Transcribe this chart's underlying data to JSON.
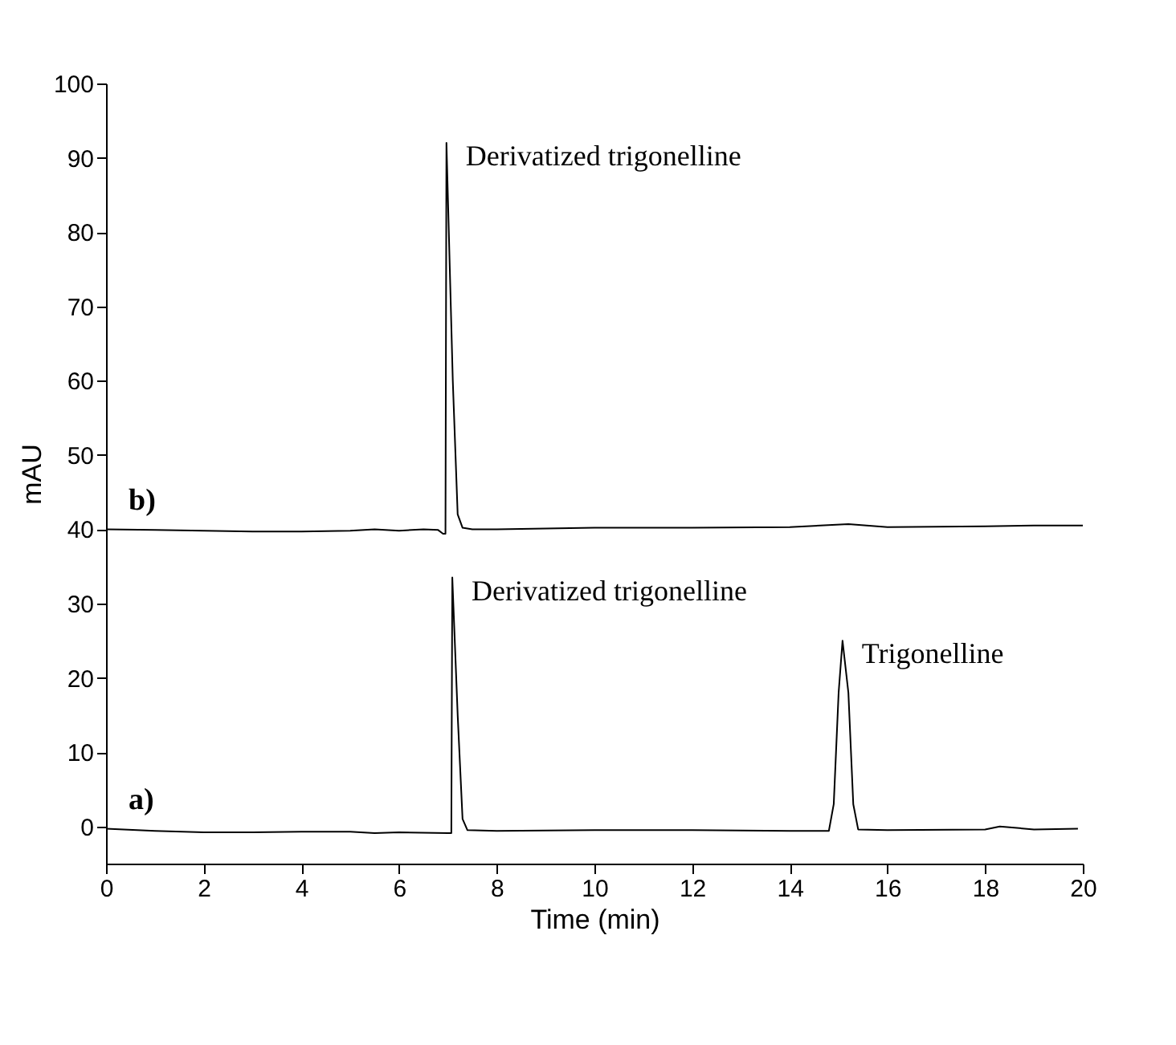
{
  "chart_data": {
    "type": "line",
    "xlabel": "Time (min)",
    "ylabel": "mAU",
    "xlim": [
      0,
      20
    ],
    "xticks": [
      0,
      2,
      4,
      6,
      8,
      10,
      12,
      14,
      16,
      18,
      20
    ],
    "ylim": [
      -5,
      100
    ],
    "yticks": [
      0,
      10,
      20,
      30,
      40,
      50,
      60,
      70,
      80,
      90,
      100
    ],
    "grid": false,
    "legend": false,
    "marker": "none",
    "line_style": "solid",
    "series": [
      {
        "color": "#000000",
        "x": [
          0,
          1,
          2,
          3,
          4,
          5,
          5.5,
          6,
          6.5,
          6.8,
          6.9,
          6.95,
          6.97,
          7.1,
          7.2,
          7.3,
          7.5,
          8,
          10,
          12,
          14,
          15.2,
          16,
          18,
          19,
          20
        ],
        "values": [
          40,
          39.9,
          39.8,
          39.7,
          39.7,
          39.8,
          40,
          39.8,
          40,
          39.9,
          39.4,
          39.4,
          92,
          60,
          42,
          40.2,
          40,
          40,
          40.2,
          40.2,
          40.3,
          40.7,
          40.3,
          40.4,
          40.5,
          40.5
        ]
      },
      {
        "color": "#000000",
        "x": [
          0,
          1,
          2,
          3,
          4,
          5,
          5.5,
          6,
          7,
          7.07,
          7.09,
          7.2,
          7.3,
          7.4,
          8,
          10,
          12,
          14,
          14.8,
          14.9,
          15.0,
          15.08,
          15.2,
          15.3,
          15.4,
          16,
          18,
          18.3,
          19,
          19.9
        ],
        "values": [
          -0.3,
          -0.6,
          -0.8,
          -0.8,
          -0.7,
          -0.7,
          -0.9,
          -0.8,
          -0.9,
          -0.9,
          33.5,
          15,
          1,
          -0.5,
          -0.6,
          -0.5,
          -0.5,
          -0.6,
          -0.6,
          3,
          18,
          25,
          18,
          3,
          -0.4,
          -0.5,
          -0.4,
          0,
          -0.4,
          -0.3
        ]
      }
    ],
    "annotations": [
      {
        "text": "Derivatized trigonelline",
        "x": 6.97,
        "y": 92
      },
      {
        "text": "Derivatized trigonelline",
        "x": 7.09,
        "y": 33.5
      },
      {
        "text": "Trigonelline",
        "x": 15.08,
        "y": 25
      },
      "b)",
      "a)"
    ]
  }
}
